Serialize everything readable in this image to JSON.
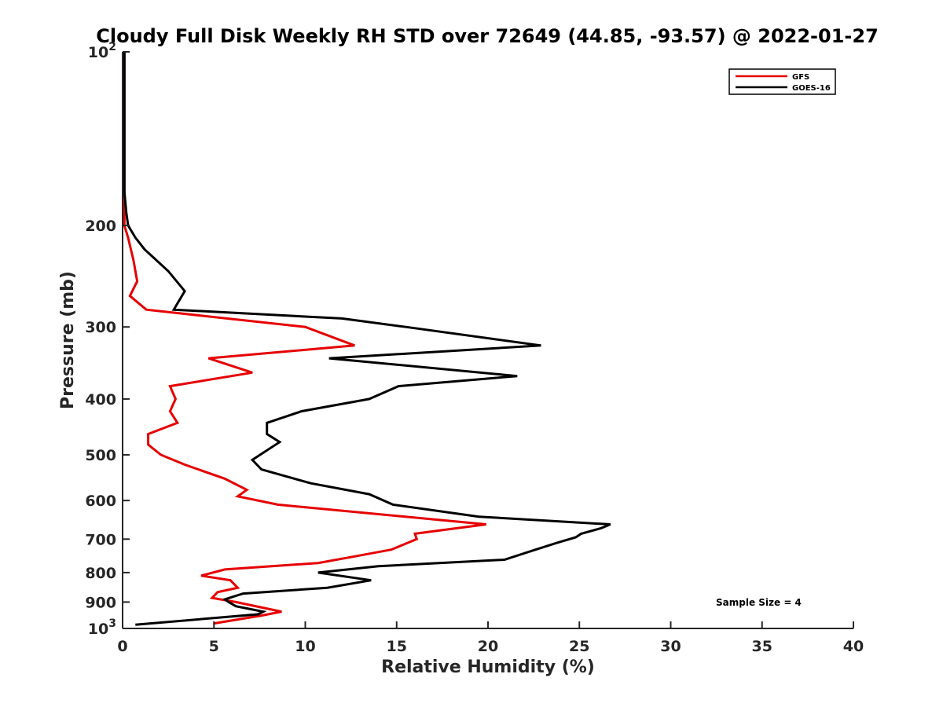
{
  "chart_data": {
    "type": "line",
    "title": "Cloudy Full Disk Weekly RH STD over 72649 (44.85, -93.57) @ 2022-01-27",
    "xlabel": "Relative Humidity (%)",
    "ylabel": "Pressure (mb)",
    "xlim": [
      0,
      40
    ],
    "ylim": [
      100,
      1000
    ],
    "yscale": "log",
    "y_reversed": true,
    "grid": false,
    "legend_position": "top-right",
    "x_ticks": [
      "0",
      "5",
      "10",
      "15",
      "20",
      "25",
      "30",
      "35",
      "40"
    ],
    "y_ticks": [
      {
        "value": 100,
        "base": "10",
        "exp": "2"
      },
      {
        "value": 200,
        "label": "200"
      },
      {
        "value": 300,
        "label": "300"
      },
      {
        "value": 400,
        "label": "400"
      },
      {
        "value": 500,
        "label": "500"
      },
      {
        "value": 600,
        "label": "600"
      },
      {
        "value": 700,
        "label": "700"
      },
      {
        "value": 800,
        "label": "800"
      },
      {
        "value": 900,
        "label": "900"
      },
      {
        "value": 1000,
        "base": "10",
        "exp": "3"
      }
    ],
    "series": [
      {
        "name": "GFS",
        "color": "#e60000",
        "points": [
          [
            0.1,
            100
          ],
          [
            0.1,
            150
          ],
          [
            0.1,
            175
          ],
          [
            0.1,
            200
          ],
          [
            0.3,
            210
          ],
          [
            0.6,
            230
          ],
          [
            0.8,
            250
          ],
          [
            0.4,
            265
          ],
          [
            1.3,
            280
          ],
          [
            10.0,
            300
          ],
          [
            12.7,
            323
          ],
          [
            4.7,
            340
          ],
          [
            7.1,
            360
          ],
          [
            2.6,
            380
          ],
          [
            2.9,
            400
          ],
          [
            2.6,
            420
          ],
          [
            3.0,
            440
          ],
          [
            1.4,
            460
          ],
          [
            1.4,
            480
          ],
          [
            2.1,
            500
          ],
          [
            3.4,
            520
          ],
          [
            5.6,
            550
          ],
          [
            6.8,
            575
          ],
          [
            6.3,
            590
          ],
          [
            8.5,
            610
          ],
          [
            19.9,
            660
          ],
          [
            16.0,
            685
          ],
          [
            16.1,
            700
          ],
          [
            14.7,
            730
          ],
          [
            12.7,
            750
          ],
          [
            10.7,
            770
          ],
          [
            5.6,
            790
          ],
          [
            4.3,
            810
          ],
          [
            5.9,
            825
          ],
          [
            6.3,
            850
          ],
          [
            5.2,
            865
          ],
          [
            4.9,
            885
          ],
          [
            6.2,
            900
          ],
          [
            8.7,
            935
          ],
          [
            7.6,
            950
          ],
          [
            5.0,
            980
          ]
        ]
      },
      {
        "name": "GOES-16",
        "color": "#000000",
        "points": [
          [
            0.1,
            100
          ],
          [
            0.1,
            150
          ],
          [
            0.1,
            175
          ],
          [
            0.2,
            190
          ],
          [
            0.3,
            200
          ],
          [
            0.7,
            210
          ],
          [
            1.2,
            220
          ],
          [
            2.5,
            240
          ],
          [
            3.4,
            260
          ],
          [
            2.8,
            280
          ],
          [
            12.0,
            290
          ],
          [
            15.5,
            300
          ],
          [
            22.9,
            323
          ],
          [
            11.3,
            340
          ],
          [
            21.6,
            365
          ],
          [
            15.1,
            380
          ],
          [
            13.5,
            400
          ],
          [
            9.8,
            420
          ],
          [
            7.9,
            440
          ],
          [
            7.9,
            460
          ],
          [
            8.6,
            475
          ],
          [
            7.1,
            510
          ],
          [
            7.6,
            530
          ],
          [
            10.3,
            560
          ],
          [
            13.5,
            585
          ],
          [
            14.8,
            610
          ],
          [
            19.5,
            640
          ],
          [
            26.7,
            660
          ],
          [
            26.2,
            670
          ],
          [
            25.1,
            685
          ],
          [
            24.8,
            695
          ],
          [
            23.8,
            710
          ],
          [
            22.6,
            730
          ],
          [
            20.9,
            760
          ],
          [
            14.0,
            780
          ],
          [
            10.7,
            800
          ],
          [
            13.6,
            825
          ],
          [
            11.2,
            850
          ],
          [
            6.6,
            870
          ],
          [
            5.6,
            890
          ],
          [
            5.8,
            900
          ],
          [
            6.2,
            915
          ],
          [
            7.7,
            935
          ],
          [
            7.4,
            945
          ],
          [
            0.7,
            985
          ]
        ]
      }
    ],
    "annotation": "Sample Size = 4"
  }
}
